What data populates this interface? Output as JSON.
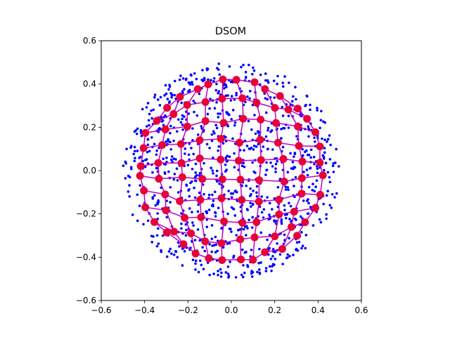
{
  "chart_data": {
    "type": "scatter",
    "title": "DSOM",
    "xlabel": "",
    "ylabel": "",
    "xlim": [
      -0.6,
      0.6
    ],
    "ylim": [
      -0.6,
      0.6
    ],
    "xticks": [
      -0.6,
      -0.4,
      -0.2,
      0.0,
      0.2,
      0.4,
      0.6
    ],
    "yticks": [
      -0.6,
      -0.4,
      -0.2,
      0.0,
      0.2,
      0.4,
      0.6
    ],
    "xtick_labels": [
      "−0.6",
      "−0.4",
      "−0.2",
      "0.0",
      "0.2",
      "0.4",
      "0.6"
    ],
    "ytick_labels": [
      "−0.6",
      "−0.4",
      "−0.2",
      "0.0",
      "0.2",
      "0.4",
      "0.6"
    ],
    "grid": false,
    "series": [
      {
        "role": "samples",
        "type": "scatter",
        "color": "#0000ff",
        "shape": "random points uniformly filling a disc",
        "center": [
          0.0,
          0.0
        ],
        "radius": 0.5,
        "count": 1000
      },
      {
        "role": "neurons",
        "type": "grid-network",
        "node_color": "#e8003a",
        "link_color": "#c000c0",
        "rows": 10,
        "cols": 10,
        "center": [
          0.0,
          0.0
        ],
        "radius": 0.42
      }
    ]
  }
}
